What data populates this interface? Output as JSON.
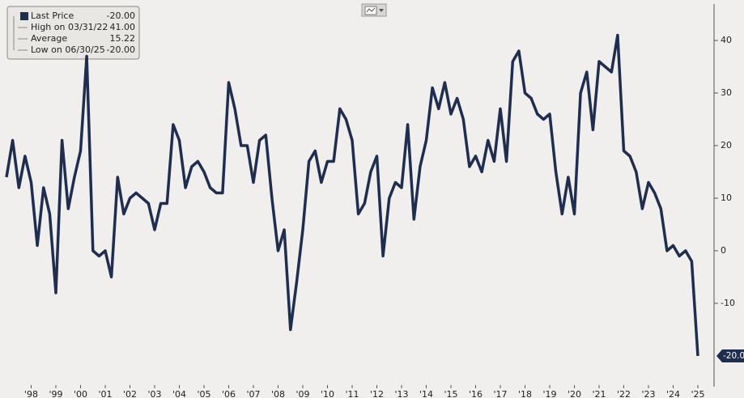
{
  "chart_data": {
    "type": "line",
    "legend": [
      {
        "label": "Last Price",
        "value": "-20.00"
      },
      {
        "label": "High on 03/31/22",
        "value": "41.00"
      },
      {
        "label": "Average",
        "value": "15.22"
      },
      {
        "label": "Low on 06/30/25",
        "value": "-20.00"
      }
    ],
    "last_label": "-20.00",
    "categories": [
      null,
      null,
      null,
      null,
      "'98",
      null,
      null,
      null,
      "'99",
      null,
      null,
      null,
      "'00",
      null,
      null,
      null,
      "'01",
      null,
      null,
      null,
      "'02",
      null,
      null,
      null,
      "'03",
      null,
      null,
      null,
      "'04",
      null,
      null,
      null,
      "'05",
      null,
      null,
      null,
      "'06",
      null,
      null,
      null,
      "'07",
      null,
      null,
      null,
      "'08",
      null,
      null,
      null,
      "'09",
      null,
      null,
      null,
      "'10",
      null,
      null,
      null,
      "'11",
      null,
      null,
      null,
      "'12",
      null,
      null,
      null,
      "'13",
      null,
      null,
      null,
      "'14",
      null,
      null,
      null,
      "'15",
      null,
      null,
      null,
      "'16",
      null,
      null,
      null,
      "'17",
      null,
      null,
      null,
      "'18",
      null,
      null,
      null,
      "'19",
      null,
      null,
      null,
      "'20",
      null,
      null,
      null,
      "'21",
      null,
      null,
      null,
      "'22",
      null,
      null,
      null,
      "'23",
      null,
      null,
      null,
      "'24",
      null,
      null,
      null,
      "'25"
    ],
    "series": [
      {
        "name": "Last Price",
        "color": "#1f2d4e",
        "values": [
          14,
          21,
          12,
          18,
          13,
          1,
          12,
          7,
          -8,
          21,
          8,
          14,
          19,
          37,
          0,
          -1,
          0,
          -5,
          14,
          7,
          10,
          11,
          10,
          9,
          4,
          9,
          9,
          24,
          21,
          12,
          16,
          17,
          15,
          12,
          11,
          11,
          32,
          27,
          20,
          20,
          13,
          21,
          22,
          10,
          0,
          4,
          -15,
          -6,
          4,
          17,
          19,
          13,
          17,
          17,
          27,
          25,
          21,
          7,
          9,
          15,
          18,
          -1,
          10,
          13,
          12,
          24,
          6,
          16,
          21,
          31,
          27,
          32,
          26,
          29,
          25,
          16,
          18,
          15,
          21,
          17,
          27,
          17,
          36,
          38,
          30,
          29,
          26,
          25,
          26,
          15,
          7,
          14,
          7,
          30,
          34,
          23,
          36,
          35,
          34,
          41,
          19,
          18,
          15,
          8,
          13,
          11,
          8,
          0,
          1,
          -1,
          0,
          -2,
          -20
        ]
      }
    ],
    "ylim": [
      -25,
      47
    ],
    "yticks": [
      -10,
      0,
      10,
      20,
      30,
      40
    ]
  }
}
